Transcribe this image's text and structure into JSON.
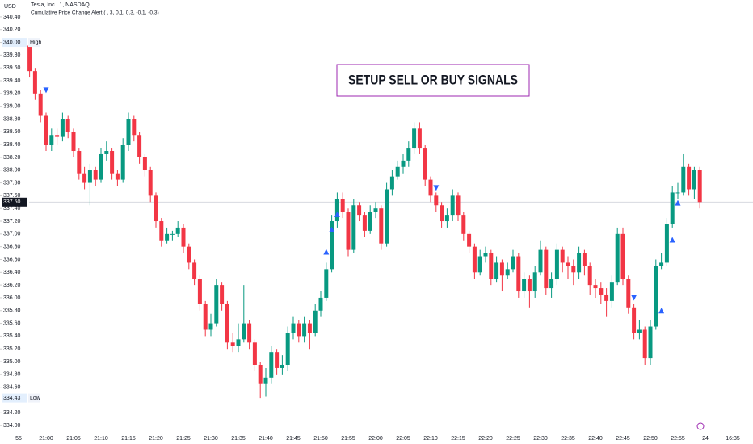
{
  "currency": "USD",
  "chart_data": {
    "type": "candlestick",
    "title": "Tesla, Inc., 1, NASDAQ",
    "subtitle": "Cumulative Price Change Alert ( , 3, 0.1, 0.3, -0.1, -0.3)",
    "annotation": "SETUP SELL OR BUY SIGNALS",
    "up_color": "#089981",
    "down_color": "#f23645",
    "signal_color": "#2962ff",
    "categories": [
      "55",
      null,
      null,
      null,
      null,
      "21:00",
      null,
      null,
      null,
      null,
      "21:05",
      null,
      null,
      null,
      null,
      "21:10",
      null,
      null,
      null,
      null,
      "21:15",
      null,
      null,
      null,
      null,
      "21:20",
      null,
      null,
      null,
      null,
      "21:25",
      null,
      null,
      null,
      null,
      "21:30",
      null,
      null,
      null,
      null,
      "21:35",
      null,
      null,
      null,
      null,
      "21:40",
      null,
      null,
      null,
      null,
      "21:45",
      null,
      null,
      null,
      null,
      "21:50",
      null,
      null,
      null,
      null,
      "21:55",
      null,
      null,
      null,
      null,
      "22:00",
      null,
      null,
      null,
      null,
      "22:05",
      null,
      null,
      null,
      null,
      "22:10",
      null,
      null,
      null,
      null,
      "22:15",
      null,
      null,
      null,
      null,
      "22:20",
      null,
      null,
      null,
      null,
      "22:25",
      null,
      null,
      null,
      null,
      "22:30",
      null,
      null,
      null,
      null,
      "22:35",
      null,
      null,
      null,
      null,
      "22:40",
      null,
      null,
      null,
      null,
      "22:45",
      null,
      null,
      null,
      null,
      "22:50",
      null,
      null,
      null,
      null,
      "22:55",
      null,
      null,
      null,
      null,
      "24",
      null,
      null,
      null,
      null,
      "16:35"
    ],
    "open": [
      null,
      null,
      339.95,
      339.55,
      339.2,
      338.85,
      338.4,
      338.55,
      338.52,
      338.8,
      338.6,
      338.3,
      337.95,
      337.8,
      338.0,
      337.85,
      338.25,
      338.3,
      337.95,
      337.85,
      338.4,
      338.8,
      338.55,
      338.2,
      338.0,
      337.6,
      337.2,
      336.9,
      337.0,
      337.0,
      337.1,
      336.8,
      336.55,
      336.3,
      335.9,
      335.5,
      335.6,
      336.2,
      335.9,
      335.3,
      335.25,
      335.35,
      335.6,
      335.3,
      334.95,
      334.65,
      334.75,
      335.15,
      334.9,
      334.95,
      335.45,
      335.6,
      335.4,
      335.6,
      335.45,
      335.8,
      336.0,
      336.45,
      337.2,
      337.55,
      337.35,
      336.75,
      337.45,
      337.3,
      337.05,
      337.35,
      337.4,
      336.85,
      337.7,
      337.9,
      338.05,
      338.15,
      338.35,
      338.65,
      338.35,
      337.85,
      337.6,
      337.45,
      337.2,
      337.3,
      337.6,
      337.3,
      337.0,
      336.8,
      336.4,
      336.65,
      336.7,
      336.3,
      336.55,
      336.35,
      336.45,
      336.65,
      336.1,
      336.3,
      336.1,
      336.4,
      336.75,
      336.15,
      336.3,
      336.75,
      336.55,
      336.5,
      336.4,
      336.7,
      336.5,
      336.2,
      336.15,
      336.05,
      335.95,
      336.25,
      337.0,
      336.3,
      335.85,
      335.45,
      335.5,
      335.05,
      335.55,
      336.5,
      336.55,
      337.15,
      337.65,
      337.65,
      338.05,
      337.7,
      338.0,
      null,
      null,
      null,
      null,
      null,
      null
    ],
    "high": [
      null,
      null,
      340.0,
      339.6,
      339.25,
      338.9,
      338.65,
      338.65,
      338.9,
      338.85,
      338.65,
      338.35,
      338.05,
      338.1,
      338.05,
      338.35,
      338.45,
      338.35,
      338.0,
      338.5,
      338.9,
      338.85,
      338.6,
      338.25,
      338.05,
      337.65,
      337.25,
      337.1,
      337.05,
      337.2,
      337.15,
      336.85,
      336.6,
      336.35,
      335.95,
      335.75,
      336.3,
      336.25,
      335.95,
      335.45,
      335.6,
      336.2,
      335.65,
      335.35,
      335.0,
      334.9,
      335.25,
      335.2,
      335.1,
      335.55,
      335.7,
      335.65,
      335.7,
      335.65,
      335.9,
      336.1,
      336.55,
      337.3,
      337.65,
      337.65,
      337.4,
      337.55,
      337.5,
      337.35,
      337.45,
      337.5,
      337.45,
      337.8,
      338.0,
      338.15,
      338.25,
      338.45,
      338.75,
      338.75,
      338.4,
      337.9,
      337.65,
      337.5,
      337.4,
      337.7,
      337.65,
      337.35,
      337.05,
      336.85,
      336.75,
      336.8,
      336.75,
      336.65,
      336.6,
      336.55,
      336.75,
      336.7,
      336.4,
      336.35,
      336.5,
      336.9,
      336.8,
      336.4,
      336.85,
      336.8,
      336.65,
      336.6,
      336.8,
      336.75,
      336.55,
      336.3,
      336.25,
      336.15,
      336.35,
      337.1,
      337.1,
      336.35,
      335.9,
      335.65,
      335.55,
      335.65,
      336.6,
      336.7,
      337.25,
      337.75,
      337.8,
      338.25,
      338.1,
      338.05,
      338.05,
      null,
      null,
      null,
      null,
      null,
      null
    ],
    "low": [
      null,
      null,
      339.45,
      339.1,
      338.75,
      338.3,
      338.3,
      338.4,
      338.45,
      338.5,
      338.2,
      337.85,
      337.7,
      337.45,
      337.75,
      337.8,
      338.15,
      337.85,
      337.75,
      337.8,
      338.3,
      338.45,
      338.1,
      337.9,
      337.5,
      337.1,
      336.8,
      336.85,
      336.9,
      336.95,
      336.7,
      336.45,
      336.2,
      335.8,
      335.4,
      335.4,
      335.55,
      335.8,
      335.2,
      335.15,
      335.15,
      335.3,
      335.2,
      334.85,
      334.43,
      334.45,
      334.65,
      334.8,
      334.8,
      334.85,
      335.35,
      335.3,
      335.3,
      335.2,
      335.4,
      335.7,
      335.95,
      336.4,
      337.1,
      337.25,
      336.65,
      336.7,
      337.2,
      336.95,
      337.0,
      337.25,
      336.75,
      336.8,
      337.6,
      337.85,
      337.95,
      338.05,
      338.25,
      338.25,
      337.75,
      337.5,
      337.35,
      337.1,
      337.1,
      337.2,
      337.2,
      336.9,
      336.7,
      336.3,
      336.35,
      336.55,
      336.2,
      336.25,
      336.1,
      336.3,
      336.4,
      336.0,
      336.0,
      335.85,
      336.0,
      336.35,
      336.05,
      336.0,
      336.2,
      336.4,
      336.3,
      336.2,
      336.3,
      336.35,
      336.05,
      336.0,
      335.9,
      335.7,
      335.85,
      336.2,
      336.2,
      335.75,
      335.35,
      335.35,
      334.95,
      334.95,
      335.5,
      336.45,
      336.5,
      337.1,
      337.55,
      337.6,
      337.6,
      337.55,
      337.4,
      null,
      null,
      null,
      null,
      null,
      null
    ],
    "close": [
      null,
      null,
      339.55,
      339.2,
      338.85,
      338.4,
      338.55,
      338.52,
      338.8,
      338.6,
      338.3,
      337.95,
      337.8,
      338.0,
      337.85,
      338.25,
      338.3,
      337.95,
      337.85,
      338.4,
      338.8,
      338.55,
      338.2,
      338.0,
      337.6,
      337.2,
      336.9,
      337.0,
      337.0,
      337.1,
      336.8,
      336.55,
      336.3,
      335.9,
      335.5,
      335.6,
      336.2,
      335.9,
      335.3,
      335.25,
      335.35,
      335.6,
      335.3,
      334.95,
      334.65,
      334.75,
      335.15,
      334.9,
      334.95,
      335.45,
      335.6,
      335.4,
      335.6,
      335.45,
      335.8,
      336.0,
      336.45,
      337.2,
      337.55,
      337.35,
      336.75,
      337.45,
      337.3,
      337.05,
      337.35,
      337.4,
      336.85,
      337.7,
      337.9,
      338.05,
      338.15,
      338.35,
      338.65,
      338.35,
      337.85,
      337.6,
      337.45,
      337.2,
      337.3,
      337.6,
      337.3,
      337.0,
      336.8,
      336.4,
      336.65,
      336.7,
      336.3,
      336.55,
      336.35,
      336.45,
      336.65,
      336.1,
      336.3,
      336.1,
      336.4,
      336.75,
      336.15,
      336.3,
      336.75,
      336.55,
      336.5,
      336.4,
      336.7,
      336.5,
      336.2,
      336.15,
      336.05,
      335.95,
      336.25,
      337.0,
      336.3,
      335.85,
      335.45,
      335.5,
      335.05,
      335.55,
      336.5,
      336.55,
      337.15,
      337.65,
      337.65,
      338.05,
      337.7,
      338.0,
      337.5,
      null,
      null,
      null,
      null,
      null,
      null
    ],
    "sell_signals": [
      null,
      null,
      null,
      null,
      null,
      339.25,
      null,
      null,
      null,
      null,
      null,
      null,
      null,
      null,
      null,
      null,
      null,
      null,
      null,
      null,
      null,
      null,
      null,
      null,
      null,
      null,
      null,
      null,
      null,
      null,
      null,
      null,
      null,
      null,
      null,
      null,
      null,
      null,
      null,
      null,
      null,
      null,
      null,
      null,
      null,
      null,
      null,
      null,
      null,
      null,
      null,
      null,
      null,
      null,
      null,
      null,
      null,
      null,
      null,
      null,
      null,
      null,
      null,
      null,
      null,
      null,
      null,
      null,
      null,
      null,
      null,
      null,
      null,
      null,
      null,
      null,
      337.72,
      null,
      null,
      null,
      null,
      null,
      null,
      null,
      null,
      null,
      null,
      null,
      null,
      null,
      null,
      null,
      null,
      null,
      null,
      null,
      null,
      null,
      null,
      null,
      null,
      null,
      null,
      null,
      null,
      null,
      null,
      null,
      null,
      null,
      null,
      null,
      336.0,
      null,
      null,
      null,
      null,
      null,
      null,
      null,
      null,
      null,
      null,
      null,
      null,
      null,
      null,
      null,
      null,
      null,
      null
    ],
    "buy_signals": [
      null,
      null,
      null,
      null,
      null,
      null,
      null,
      null,
      null,
      null,
      null,
      null,
      null,
      null,
      null,
      null,
      null,
      null,
      null,
      null,
      null,
      null,
      null,
      null,
      null,
      null,
      null,
      null,
      null,
      null,
      null,
      null,
      null,
      null,
      null,
      null,
      null,
      null,
      null,
      null,
      null,
      null,
      null,
      null,
      null,
      null,
      null,
      null,
      null,
      null,
      null,
      null,
      null,
      null,
      null,
      null,
      336.72,
      337.07,
      337.31,
      null,
      null,
      null,
      null,
      null,
      null,
      null,
      null,
      null,
      null,
      null,
      null,
      null,
      null,
      null,
      null,
      null,
      null,
      null,
      null,
      null,
      null,
      null,
      null,
      null,
      null,
      null,
      null,
      null,
      null,
      null,
      null,
      null,
      null,
      null,
      null,
      null,
      null,
      null,
      null,
      null,
      null,
      null,
      null,
      null,
      null,
      null,
      null,
      null,
      null,
      null,
      null,
      null,
      null,
      null,
      null,
      null,
      null,
      335.8,
      null,
      336.91,
      337.49,
      null,
      null,
      null,
      null,
      null,
      null,
      null,
      null,
      null,
      null
    ],
    "ylim": [
      333.85,
      340.5
    ],
    "yticks": [
      {
        "value": 334.0,
        "label": "334.00"
      },
      {
        "value": 334.2,
        "label": "334.20"
      },
      {
        "value": 334.4,
        "label": "334.40"
      },
      {
        "value": 334.6,
        "label": "334.60"
      },
      {
        "value": 334.8,
        "label": "334.80"
      },
      {
        "value": 335.0,
        "label": "335.00"
      },
      {
        "value": 335.2,
        "label": "335.20"
      },
      {
        "value": 335.4,
        "label": "335.40"
      },
      {
        "value": 335.6,
        "label": "335.60"
      },
      {
        "value": 335.8,
        "label": "335.80"
      },
      {
        "value": 336.0,
        "label": "336.00"
      },
      {
        "value": 336.2,
        "label": "336.20"
      },
      {
        "value": 336.4,
        "label": "336.40"
      },
      {
        "value": 336.6,
        "label": "336.60"
      },
      {
        "value": 336.8,
        "label": "336.80"
      },
      {
        "value": 337.0,
        "label": "337.00"
      },
      {
        "value": 337.2,
        "label": "337.20"
      },
      {
        "value": 337.4,
        "label": "337.40"
      },
      {
        "value": 337.6,
        "label": "337.60"
      },
      {
        "value": 337.8,
        "label": "337.80"
      },
      {
        "value": 338.0,
        "label": "338.00"
      },
      {
        "value": 338.2,
        "label": "338.20"
      },
      {
        "value": 338.4,
        "label": "338.40"
      },
      {
        "value": 338.6,
        "label": "338.60"
      },
      {
        "value": 338.8,
        "label": "338.80"
      },
      {
        "value": 339.0,
        "label": "339.00"
      },
      {
        "value": 339.2,
        "label": "339.20"
      },
      {
        "value": 339.4,
        "label": "339.40"
      },
      {
        "value": 339.6,
        "label": "339.60"
      },
      {
        "value": 339.8,
        "label": "339.80"
      },
      {
        "value": 340.0,
        "label": "340.00"
      },
      {
        "value": 340.2,
        "label": "340.20"
      },
      {
        "value": 340.4,
        "label": "340.40"
      }
    ],
    "high_marker": {
      "value": 340.0,
      "label": "340.00",
      "text": "High"
    },
    "low_marker": {
      "value": 334.43,
      "label": "334.43",
      "text": "Low"
    },
    "last_price": {
      "value": 337.5,
      "label": "337.50"
    }
  }
}
